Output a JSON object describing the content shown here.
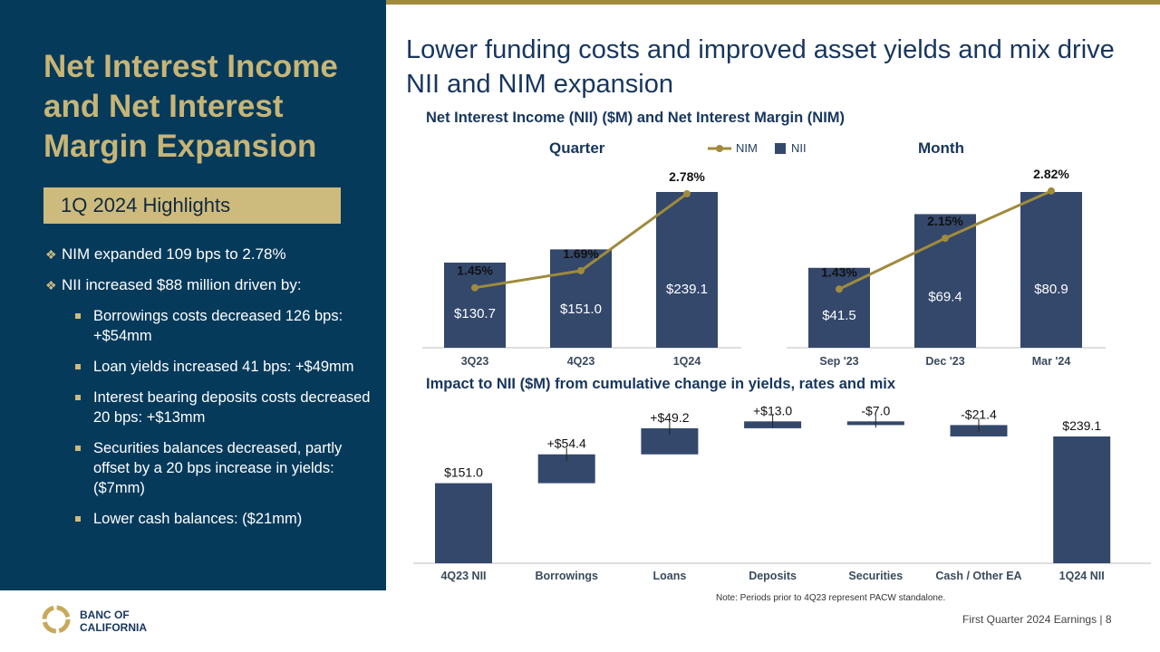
{
  "sidebar": {
    "title": "Net Interest Income and Net Interest Margin Expansion",
    "badge": "1Q 2024 Highlights",
    "bullet1": "NIM expanded 109 bps to 2.78%",
    "bullet2": "NII increased $88 million driven by:",
    "subitems": [
      "Borrowings costs decreased 126 bps: +$54mm",
      "Loan yields increased 41 bps: +$49mm",
      "Interest bearing deposits costs decreased 20 bps: +$13mm",
      "Securities balances decreased, partly offset by a 20 bps increase in yields: ($7mm)",
      "Lower cash balances: ($21mm)"
    ]
  },
  "main_title": "Lower funding costs and improved asset yields and mix drive NII and NIM expansion",
  "note": "Note: Periods prior to 4Q23 represent PACW standalone.",
  "footer": "First Quarter 2024 Earnings |  8",
  "logo": {
    "line1": "BANC OF",
    "line2": "CALIFORNIA"
  },
  "colors": {
    "navy": "#063a5b",
    "bar": "#34486c",
    "gold": "#a08b3c",
    "badge": "#cdbb7d"
  },
  "chart_data": [
    {
      "type": "bar",
      "title": "Net Interest Income (NII) ($M) and Net Interest Margin (NIM)",
      "panel": "Quarter",
      "legend": [
        "NIM",
        "NII"
      ],
      "categories": [
        "3Q23",
        "4Q23",
        "1Q24"
      ],
      "bar_values": [
        130.7,
        151.0,
        239.1
      ],
      "bar_labels": [
        "$130.7",
        "$151.0",
        "$239.1"
      ],
      "line_values": [
        1.45,
        1.69,
        2.78
      ],
      "line_labels": [
        "1.45%",
        "1.69%",
        "2.78%"
      ]
    },
    {
      "type": "bar",
      "panel": "Month",
      "categories": [
        "Sep '23",
        "Dec '23",
        "Mar '24"
      ],
      "bar_values": [
        41.5,
        69.4,
        80.9
      ],
      "bar_labels": [
        "$41.5",
        "$69.4",
        "$80.9"
      ],
      "line_values": [
        1.43,
        2.15,
        2.82
      ],
      "line_labels": [
        "1.43%",
        "2.15%",
        "2.82%"
      ]
    },
    {
      "type": "bar",
      "subtype": "waterfall",
      "title": "Impact to NII ($M) from cumulative change in yields, rates and mix",
      "categories": [
        "4Q23 NII",
        "Borrowings",
        "Loans",
        "Deposits",
        "Securities",
        "Cash / Other EA",
        "1Q24 NII"
      ],
      "values": [
        151.0,
        54.4,
        49.2,
        13.0,
        -7.0,
        -21.4,
        239.1
      ],
      "labels": [
        "$151.0",
        "+$54.4",
        "+$49.2",
        "+$13.0",
        "-$7.0",
        "-$21.4",
        "$239.1"
      ],
      "totals": [
        true,
        false,
        false,
        false,
        false,
        false,
        true
      ]
    }
  ]
}
